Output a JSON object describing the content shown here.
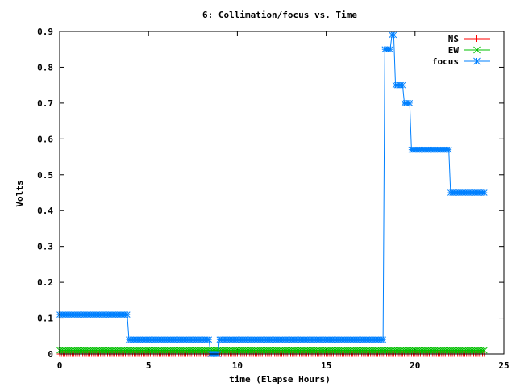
{
  "chart_data": {
    "type": "line",
    "title": "6: Collimation/focus vs. Time",
    "xlabel": "time (Elapse Hours)",
    "ylabel": "Volts",
    "xlim": [
      0,
      25
    ],
    "ylim": [
      0,
      0.9
    ],
    "x_ticks": [
      "0",
      "5",
      "10",
      "15",
      "20",
      "25"
    ],
    "y_ticks": [
      "0",
      "0.1",
      "0.2",
      "0.3",
      "0.4",
      "0.5",
      "0.6",
      "0.7",
      "0.8",
      "0.9"
    ],
    "x_tick_values": [
      0,
      5,
      10,
      15,
      20,
      25
    ],
    "y_tick_values": [
      0,
      0.1,
      0.2,
      0.3,
      0.4,
      0.5,
      0.6,
      0.7,
      0.8,
      0.9
    ],
    "grid": false,
    "legend_position": "top-right",
    "series": [
      {
        "name": "NS",
        "color": "#ff0000",
        "marker": "plus",
        "segments": [
          {
            "x_start": 0,
            "x_end": 23.9,
            "y": 0.0
          }
        ]
      },
      {
        "name": "EW",
        "color": "#00c000",
        "marker": "cross",
        "segments": [
          {
            "x_start": 0,
            "x_end": 23.9,
            "y": 0.01
          }
        ]
      },
      {
        "name": "focus",
        "color": "#0080ff",
        "marker": "star",
        "segments": [
          {
            "x_start": 0.0,
            "x_end": 3.8,
            "y": 0.11
          },
          {
            "x_start": 3.9,
            "x_end": 8.4,
            "y": 0.04
          },
          {
            "x_start": 8.5,
            "x_end": 8.9,
            "y": 0.0
          },
          {
            "x_start": 9.0,
            "x_end": 18.2,
            "y": 0.04
          },
          {
            "x_start": 18.3,
            "x_end": 18.6,
            "y": 0.85
          },
          {
            "x_start": 18.7,
            "x_end": 18.8,
            "y": 0.89
          },
          {
            "x_start": 18.9,
            "x_end": 19.3,
            "y": 0.75
          },
          {
            "x_start": 19.4,
            "x_end": 19.7,
            "y": 0.7
          },
          {
            "x_start": 19.8,
            "x_end": 21.9,
            "y": 0.57
          },
          {
            "x_start": 22.0,
            "x_end": 23.9,
            "y": 0.45
          }
        ]
      }
    ]
  }
}
